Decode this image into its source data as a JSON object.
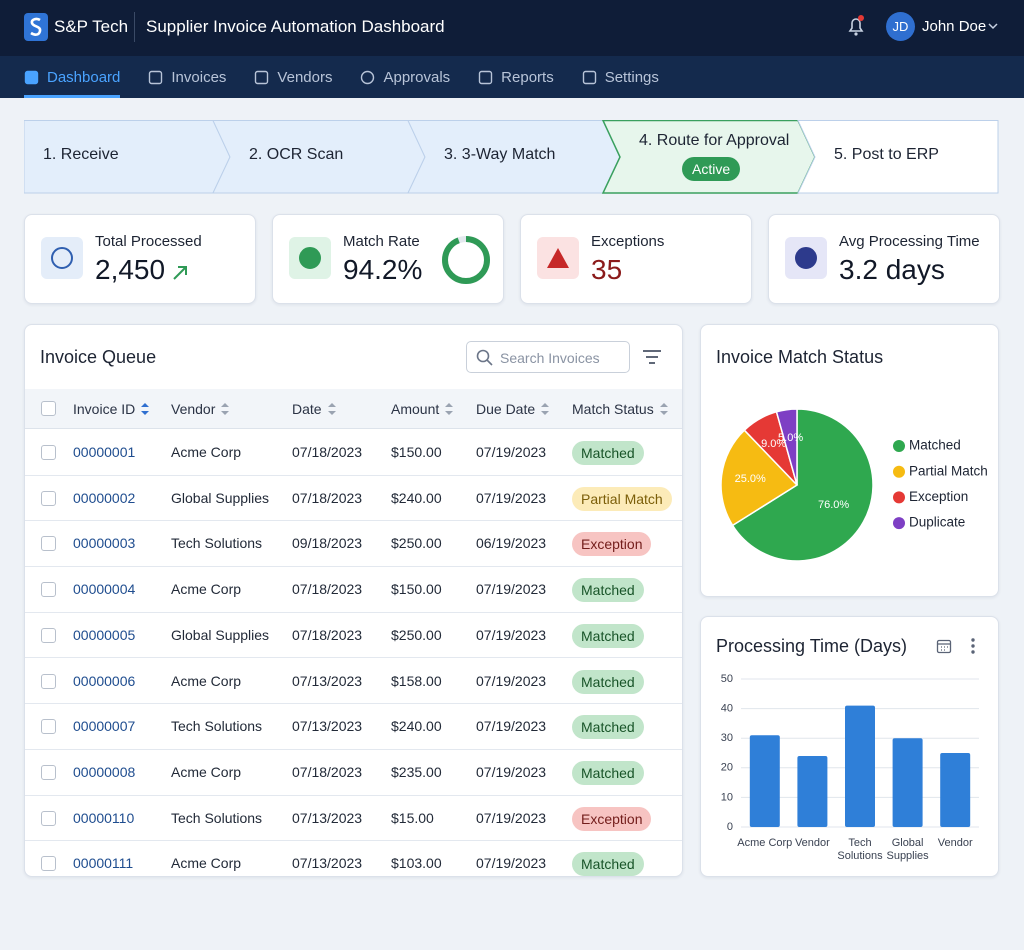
{
  "header": {
    "brand": "S&P Tech",
    "title": "Supplier Invoice Automation Dashboard",
    "user_initials": "JD",
    "user_name": "John Doe"
  },
  "nav": {
    "items": [
      "Dashboard",
      "Invoices",
      "Vendors",
      "Approvals",
      "Reports",
      "Settings"
    ],
    "active": 0
  },
  "workflow": {
    "steps": [
      "1. Receive",
      "2. OCR Scan",
      "3. 3-Way Match",
      "4. Route for Approval",
      "5. Post to ERP"
    ],
    "active": 3,
    "active_label": "Active"
  },
  "kpis": [
    {
      "label": "Total Processed",
      "value": "2,450"
    },
    {
      "label": "Match Rate",
      "value": 94.2,
      "value_label": "94.2%"
    },
    {
      "label": "Exceptions",
      "value": "35"
    },
    {
      "label": "Avg Processing Time",
      "value": "3.2 days"
    }
  ],
  "queue": {
    "title": "Invoice Queue",
    "search_placeholder": "Search Invoices",
    "columns": [
      "Invoice ID",
      "Vendor",
      "Date",
      "Amount",
      "Due Date",
      "Match Status"
    ],
    "rows": [
      [
        "00000001",
        "Acme Corp",
        "07/18/2023",
        "$150.00",
        "07/19/2023",
        "Matched"
      ],
      [
        "00000002",
        "Global Supplies",
        "07/18/2023",
        "$240.00",
        "07/19/2023",
        "Partial Match"
      ],
      [
        "00000003",
        "Tech Solutions",
        "09/18/2023",
        "$250.00",
        "06/19/2023",
        "Exception"
      ],
      [
        "00000004",
        "Acme Corp",
        "07/18/2023",
        "$150.00",
        "07/19/2023",
        "Matched"
      ],
      [
        "00000005",
        "Global Supplies",
        "07/18/2023",
        "$250.00",
        "07/19/2023",
        "Matched"
      ],
      [
        "00000006",
        "Acme Corp",
        "07/13/2023",
        "$158.00",
        "07/19/2023",
        "Matched"
      ],
      [
        "00000007",
        "Tech Solutions",
        "07/13/2023",
        "$240.00",
        "07/19/2023",
        "Matched"
      ],
      [
        "00000008",
        "Acme Corp",
        "07/18/2023",
        "$235.00",
        "07/19/2023",
        "Matched"
      ],
      [
        "00000110",
        "Tech Solutions",
        "07/13/2023",
        "$15.00",
        "07/19/2023",
        "Exception"
      ],
      [
        "00000111",
        "Acme Corp",
        "07/13/2023",
        "$103.00",
        "07/19/2023",
        "Matched"
      ]
    ]
  },
  "chart_data": [
    {
      "type": "pie",
      "title": "Invoice Match Status",
      "categories": [
        "Matched",
        "Partial Match",
        "Exception",
        "Duplicate"
      ],
      "values": [
        76,
        25,
        9,
        5
      ],
      "value_labels": [
        "76.0%",
        "25.0%",
        "9.0%",
        "5.0%"
      ],
      "colors": [
        "#2fa84f",
        "#f6bb12",
        "#e53935",
        "#7e3fc4"
      ],
      "legend": "right"
    },
    {
      "type": "bar",
      "title": "Processing Time (Days)",
      "categories": [
        "Acme Corp",
        "Vendor",
        "Tech Solutions",
        "Global Supplies",
        "Vendor"
      ],
      "values": [
        31,
        24,
        41,
        30,
        25
      ],
      "color": "#2f7fd8",
      "ylim": [
        0,
        50
      ],
      "yticks": [
        0,
        10,
        20,
        30,
        40,
        50
      ],
      "grid": true
    }
  ]
}
